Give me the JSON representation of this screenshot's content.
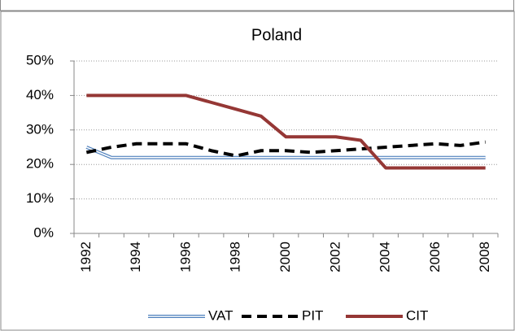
{
  "chart_data": {
    "type": "line",
    "title": "Poland",
    "categories": [
      "1992",
      null,
      "1994",
      null,
      "1996",
      null,
      "1998",
      null,
      "2000",
      null,
      "2002",
      null,
      "2004",
      null,
      "2006",
      null,
      "2008"
    ],
    "series": [
      {
        "name": "VAT",
        "color": "#4f81bd",
        "values": [
          25,
          22,
          22,
          22,
          22,
          22,
          22,
          22,
          22,
          22,
          22,
          22,
          22,
          22,
          22,
          22,
          22
        ]
      },
      {
        "name": "PIT",
        "color": "#000000",
        "values": [
          23.5,
          25,
          26,
          26,
          26,
          24,
          22.5,
          24,
          24,
          23.5,
          24,
          24.5,
          25,
          25.5,
          26,
          25.5,
          26.5
        ]
      },
      {
        "name": "CIT",
        "color": "#953735",
        "values": [
          40,
          40,
          40,
          40,
          40,
          38,
          36,
          34,
          28,
          28,
          28,
          27,
          19,
          19,
          19,
          19,
          19
        ]
      }
    ],
    "ylim": [
      0,
      50
    ],
    "yticks": [
      {
        "value": 0,
        "label": "0%"
      },
      {
        "value": 10,
        "label": "10%"
      },
      {
        "value": 20,
        "label": "20%"
      },
      {
        "value": 30,
        "label": "30%"
      },
      {
        "value": 40,
        "label": "40%"
      },
      {
        "value": 50,
        "label": "50%"
      }
    ],
    "grid": true,
    "legend": "bottom"
  }
}
